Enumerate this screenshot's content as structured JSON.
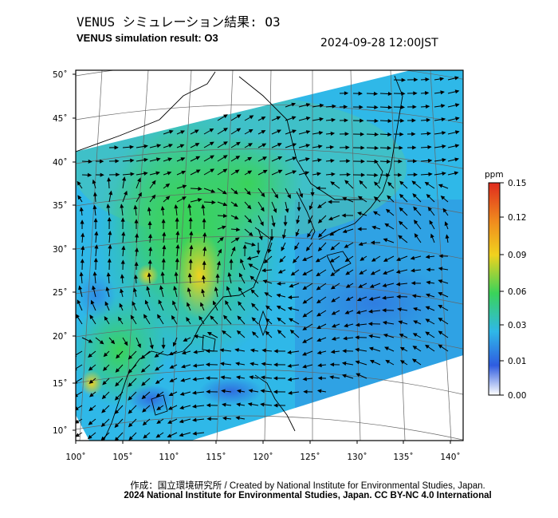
{
  "header": {
    "title_ja": "VENUS シミュレーション結果: O3",
    "title_en": "VENUS simulation result: O3",
    "timestamp": "2024-09-28 12:00JST"
  },
  "map": {
    "lon_range": [
      100,
      141
    ],
    "lat_range": [
      9,
      51
    ],
    "lon_ticks": [
      "100˚",
      "105˚",
      "110˚",
      "115˚",
      "120˚",
      "125˚",
      "130˚",
      "135˚",
      "140˚"
    ],
    "lat_ticks": [
      "50˚",
      "45˚",
      "40˚",
      "35˚",
      "30˚",
      "25˚",
      "20˚",
      "15˚",
      "10˚"
    ],
    "field_colors": {
      "low": "#2f7ae0",
      "mid_low": "#2fb8e8",
      "mid": "#3ad35a",
      "high": "#f0d21e",
      "outside": "#ffffff",
      "coastline": "#000000",
      "graticule": "#777777"
    }
  },
  "colorbar": {
    "unit": "ppm",
    "labels": [
      "0.15",
      "0.12",
      "0.09",
      "0.06",
      "0.03",
      "0.01",
      "0.00"
    ],
    "colors": [
      "#e02b1e",
      "#f08a1e",
      "#f0d21e",
      "#3ad35a",
      "#2fb8e8",
      "#2f5ce0",
      "#ffffff"
    ]
  },
  "credits": {
    "line1": "作成：国立環境研究所 / Created by National Institute for Environmental Studies, Japan.",
    "line2": "2024 National Institute for Environmental Studies, Japan. CC BY-NC 4.0 International"
  }
}
